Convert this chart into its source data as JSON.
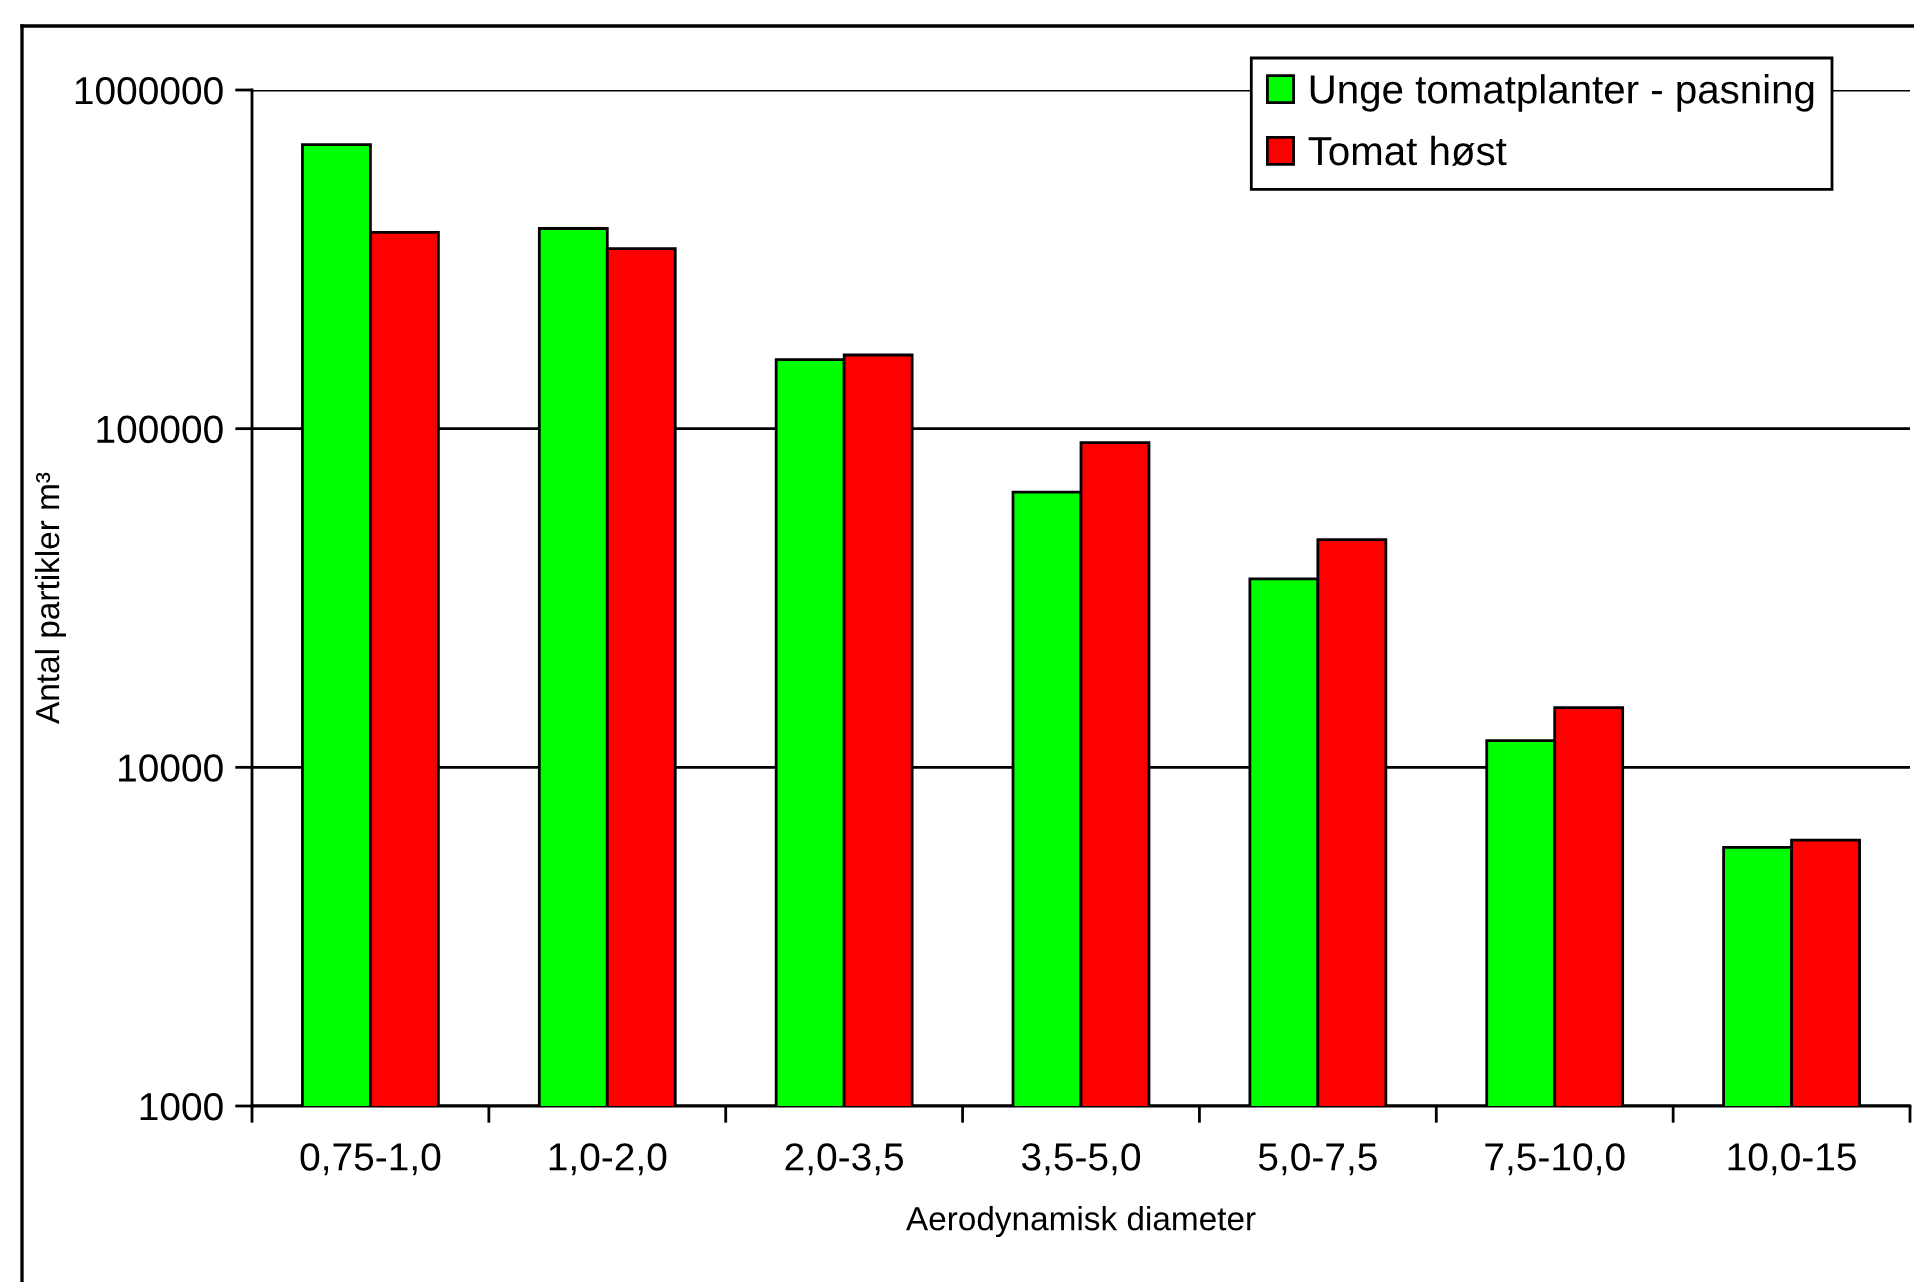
{
  "chart_data": {
    "type": "bar",
    "xlabel": "Aerodynamisk diameter",
    "ylabel": "Antal partikler m³",
    "categories": [
      "0,75-1,0",
      "1,0-2,0",
      "2,0-3,5",
      "3,5-5,0",
      "5,0-7,5",
      "7,5-10,0",
      "10,0-15"
    ],
    "series": [
      {
        "name": "Unge tomatplanter - pasning",
        "color": "#00ff00",
        "values": [
          690000,
          390000,
          160000,
          65000,
          36000,
          12000,
          5800
        ]
      },
      {
        "name": "Tomat høst",
        "color": "#ff0000",
        "values": [
          380000,
          340000,
          165000,
          91000,
          47000,
          15000,
          6100
        ]
      }
    ],
    "log": true,
    "ylim": [
      1000,
      1000000
    ],
    "yticks": [
      1000,
      10000,
      100000,
      1000000
    ],
    "grid": "y",
    "legend": "top right"
  }
}
